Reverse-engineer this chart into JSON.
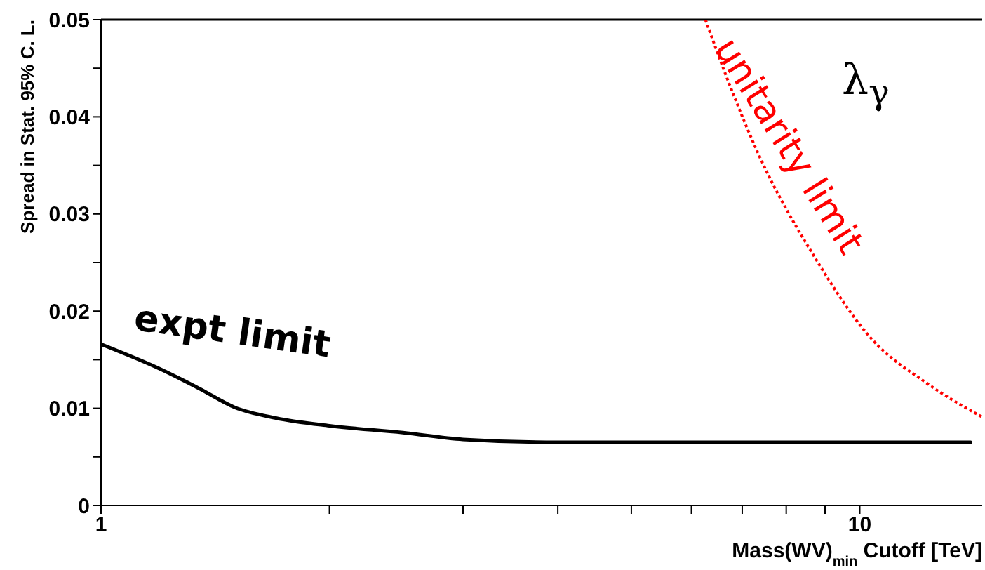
{
  "chart_data": {
    "type": "line",
    "xlabel": "Mass(WV)$_{min}$ Cutoff  [TeV]",
    "ylabel": "Spread in Stat. 95% C. L.",
    "annotations": [
      "λ$_{γ}$"
    ],
    "log": "x",
    "xlim": [
      1,
      14.5
    ],
    "xticks": [
      1,
      {
        "value": 2,
        "label": null
      },
      {
        "value": 3,
        "label": null
      },
      {
        "value": 4,
        "label": null
      },
      {
        "value": 5,
        "label": null
      },
      {
        "value": 6,
        "label": null
      },
      {
        "value": 7,
        "label": null
      },
      {
        "value": 8,
        "label": null
      },
      {
        "value": 9,
        "label": null
      },
      10
    ],
    "ylim": [
      0,
      0.05
    ],
    "yticks": [
      0,
      {
        "value": 0.005,
        "label": null
      },
      0.01,
      {
        "value": 0.015,
        "label": null
      },
      0.02,
      {
        "value": 0.025,
        "label": null
      },
      0.03,
      {
        "value": 0.035,
        "label": null
      },
      0.04,
      {
        "value": 0.045,
        "label": null
      },
      0.05
    ],
    "marker": "none",
    "series": [
      {
        "name": "expt limit",
        "color": "#000000",
        "line_style": "solid",
        "x": [
          1,
          1.2,
          1.35,
          1.5,
          1.7,
          2,
          2.5,
          3,
          4,
          6,
          10,
          14
        ],
        "values": [
          0.0166,
          0.014,
          0.012,
          0.0101,
          0.009,
          0.0082,
          0.0075,
          0.0068,
          0.0065,
          0.0065,
          0.0065,
          0.0065
        ]
      },
      {
        "name": "unitarity limit",
        "color": "#ff0000",
        "line_style": "dotted",
        "x": [
          6.26,
          6.76,
          7.36,
          8.73,
          10.35,
          12.3,
          14.5
        ],
        "values": [
          0.05,
          0.043,
          0.0361,
          0.0255,
          0.0172,
          0.0125,
          0.0091
        ]
      }
    ]
  }
}
